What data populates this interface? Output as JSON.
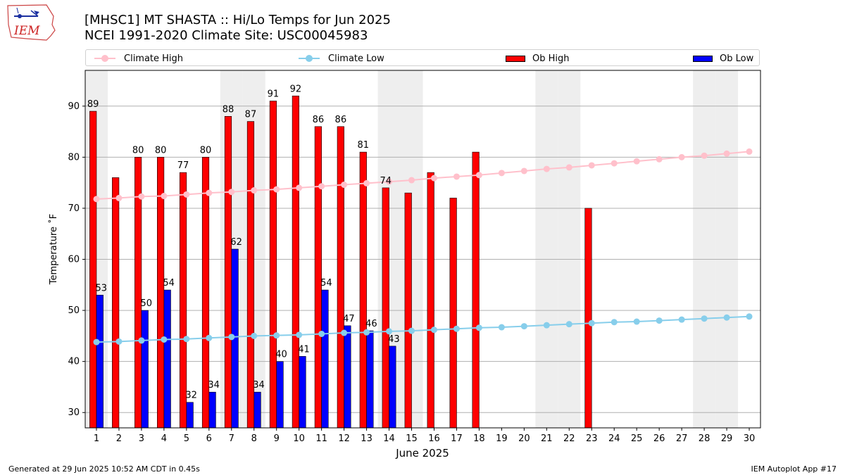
{
  "header": {
    "logo_text": "IEM",
    "title_line1": "[MHSC1] MT SHASTA :: Hi/Lo Temps for Jun 2025",
    "title_line2": "NCEI 1991-2020 Climate Site: USC00045983"
  },
  "legend": {
    "items": [
      {
        "label": "Climate High",
        "kind": "line",
        "color": "#ffc0cb"
      },
      {
        "label": "Climate Low",
        "kind": "line",
        "color": "#87ceeb"
      },
      {
        "label": "Ob High",
        "kind": "bar",
        "color": "#ff0000"
      },
      {
        "label": "Ob Low",
        "kind": "bar",
        "color": "#0000ff"
      }
    ]
  },
  "chart_data": {
    "type": "bar",
    "title": "[MHSC1] MT SHASTA :: Hi/Lo Temps for Jun 2025",
    "subtitle": "NCEI 1991-2020 Climate Site: USC00045983",
    "xlabel": "June 2025",
    "ylabel": "Temperature ˚F",
    "ylim": [
      27,
      97
    ],
    "yticks": [
      30,
      40,
      50,
      60,
      70,
      80,
      90
    ],
    "grid": "horizontal",
    "legend_position": "top",
    "x": [
      1,
      2,
      3,
      4,
      5,
      6,
      7,
      8,
      9,
      10,
      11,
      12,
      13,
      14,
      15,
      16,
      17,
      18,
      19,
      20,
      21,
      22,
      23,
      24,
      25,
      26,
      27,
      28,
      29,
      30
    ],
    "weekend_days": [
      1,
      7,
      8,
      14,
      15,
      21,
      22,
      28,
      29
    ],
    "series": [
      {
        "name": "Ob High",
        "kind": "bar",
        "color": "#ff0000",
        "values": [
          89,
          76,
          80,
          80,
          77,
          80,
          88,
          87,
          91,
          92,
          86,
          86,
          81,
          74,
          73,
          77,
          72,
          81,
          null,
          null,
          null,
          null,
          70,
          null,
          null,
          null,
          null,
          null,
          null,
          null
        ],
        "labeled": [
          true,
          false,
          true,
          true,
          true,
          true,
          true,
          true,
          true,
          true,
          true,
          true,
          true,
          true,
          false,
          false,
          false,
          false,
          false,
          false,
          false,
          false,
          false,
          false,
          false,
          false,
          false,
          false,
          false,
          false
        ]
      },
      {
        "name": "Ob Low",
        "kind": "bar",
        "color": "#0000ff",
        "values": [
          53,
          null,
          50,
          54,
          32,
          34,
          62,
          34,
          40,
          41,
          54,
          47,
          46,
          43,
          null,
          null,
          null,
          null,
          null,
          null,
          null,
          null,
          null,
          null,
          null,
          null,
          null,
          null,
          null,
          null
        ],
        "labeled": [
          true,
          false,
          true,
          true,
          true,
          true,
          true,
          true,
          true,
          true,
          true,
          true,
          true,
          true,
          false,
          false,
          false,
          false,
          false,
          false,
          false,
          false,
          false,
          false,
          false,
          false,
          false,
          false,
          false,
          false
        ]
      },
      {
        "name": "Climate High",
        "kind": "line",
        "color": "#ffc0cb",
        "values": [
          71.8,
          72.0,
          72.3,
          72.4,
          72.7,
          73.0,
          73.2,
          73.5,
          73.7,
          74.0,
          74.3,
          74.6,
          74.9,
          75.2,
          75.5,
          75.9,
          76.2,
          76.5,
          76.9,
          77.3,
          77.7,
          78.0,
          78.4,
          78.8,
          79.2,
          79.6,
          80.0,
          80.3,
          80.7,
          81.1
        ]
      },
      {
        "name": "Climate Low",
        "kind": "line",
        "color": "#87ceeb",
        "values": [
          43.8,
          43.9,
          44.1,
          44.3,
          44.4,
          44.6,
          44.8,
          45.0,
          45.1,
          45.2,
          45.4,
          45.6,
          45.7,
          45.9,
          46.0,
          46.2,
          46.4,
          46.6,
          46.7,
          46.9,
          47.1,
          47.3,
          47.5,
          47.7,
          47.8,
          48.0,
          48.2,
          48.4,
          48.6,
          48.8
        ]
      }
    ]
  },
  "footer": {
    "left": "Generated at 29 Jun 2025 10:52 AM CDT in 0.45s",
    "right": "IEM Autoplot App #17"
  }
}
